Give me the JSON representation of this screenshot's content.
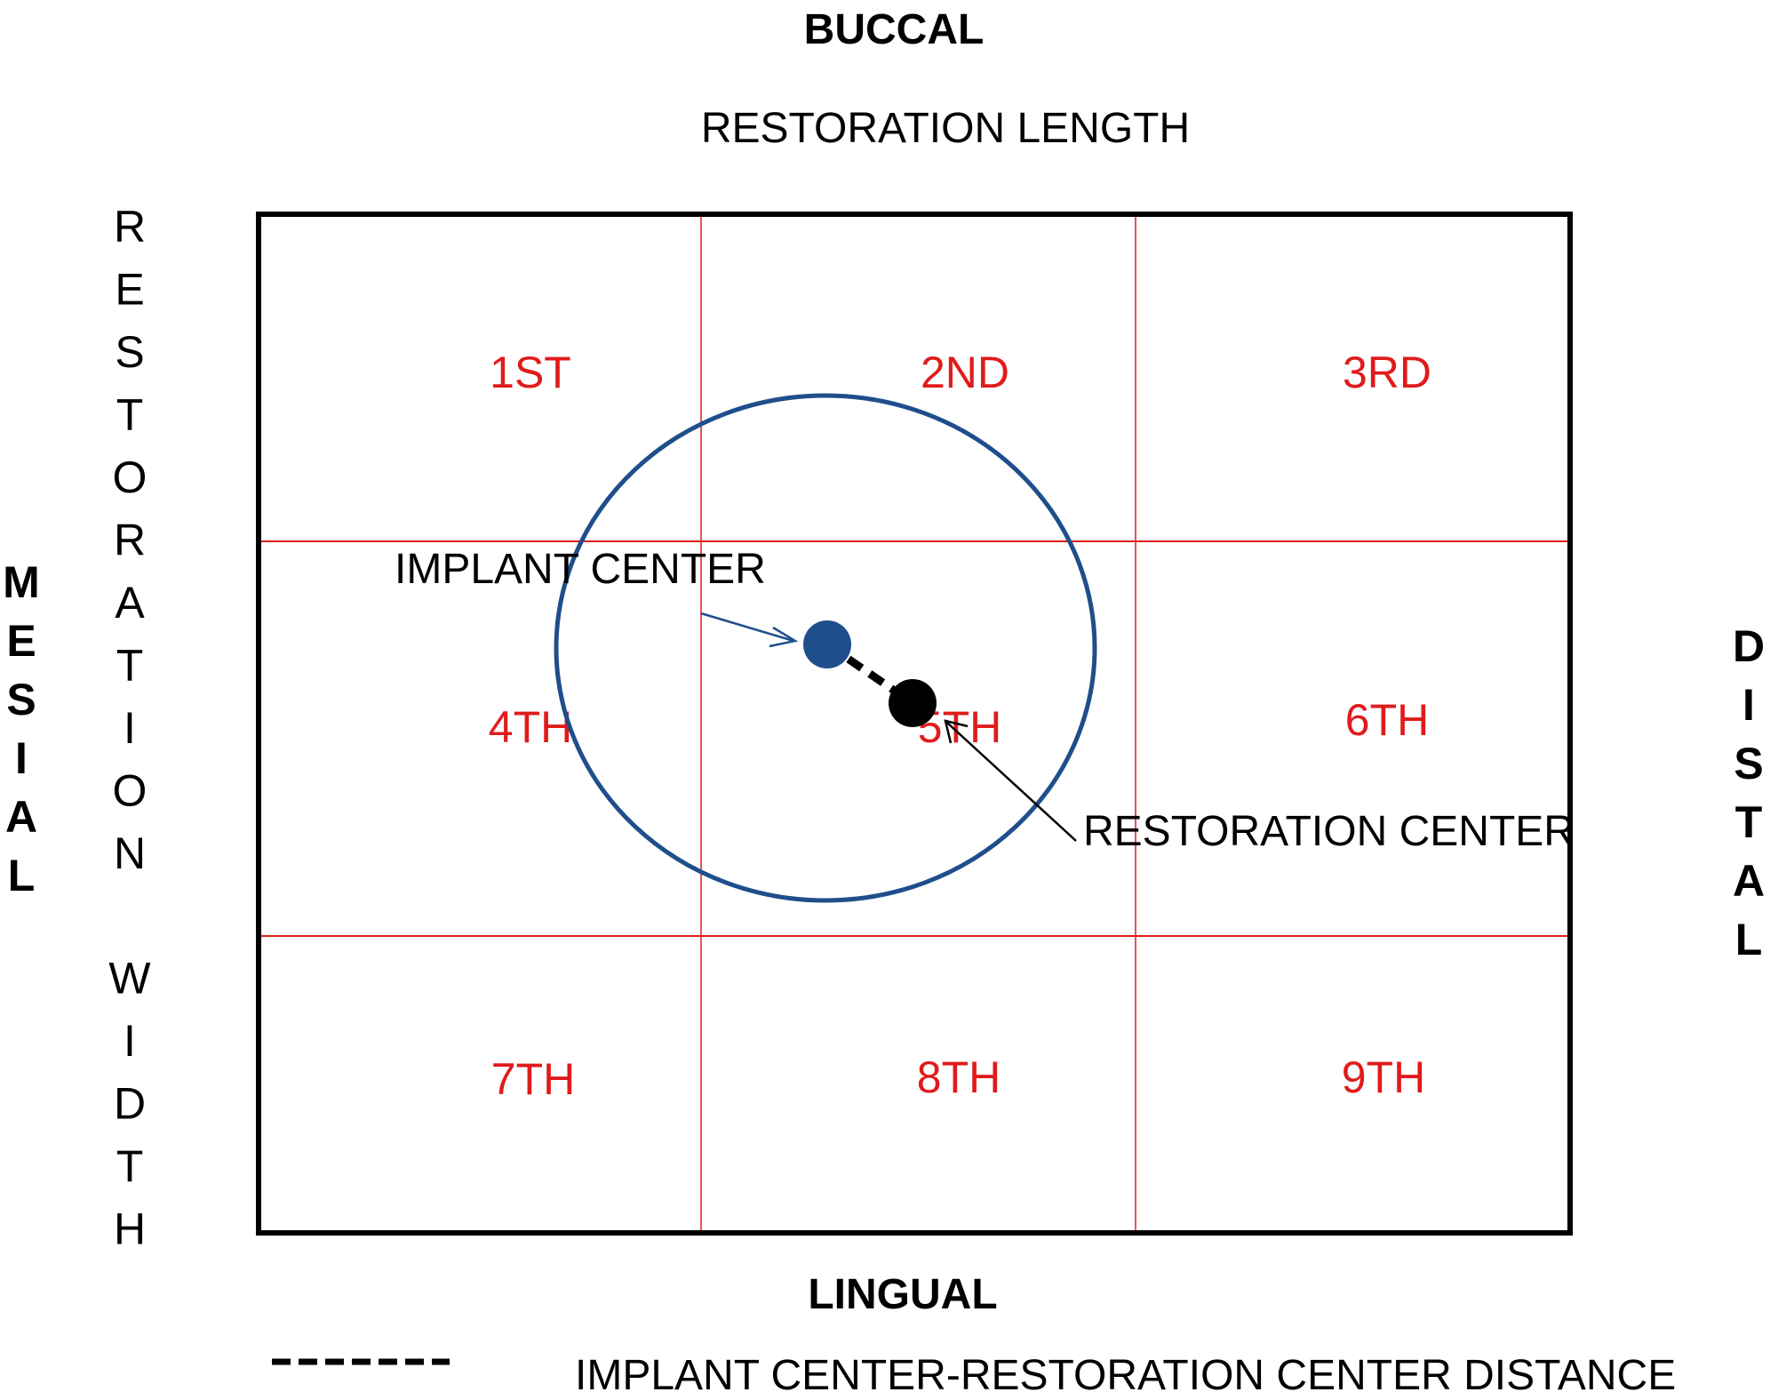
{
  "labels": {
    "buccal": "BUCCAL",
    "lingual": "LINGUAL",
    "mesial": "MESIAL",
    "distal": "DISTAL",
    "restoration_length": "RESTORATION LENGTH",
    "restoration_width": "RESTORATION WIDTH",
    "implant_center": "IMPLANT CENTER",
    "restoration_center": "RESTORATION CENTER"
  },
  "zones": [
    "1ST",
    "2ND",
    "3RD",
    "4TH",
    "5TH",
    "6TH",
    "7TH",
    "8TH",
    "9TH"
  ],
  "legend": {
    "distance_label": "IMPLANT CENTER-RESTORATION CENTER DISTANCE"
  },
  "colors": {
    "zone_text": "#e01b1b",
    "grid_lines": "#e01b1b",
    "circle_stroke": "#1f4e8c",
    "implant_dot": "#1f4e8c",
    "restoration_dot": "#000000",
    "outer_border": "#000000"
  }
}
